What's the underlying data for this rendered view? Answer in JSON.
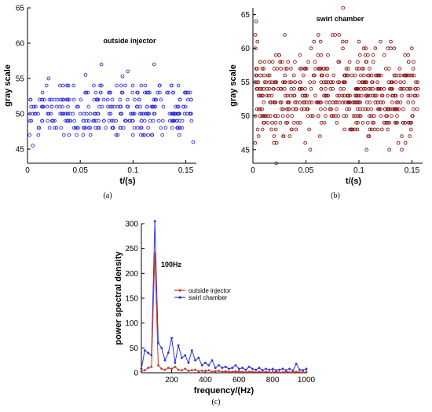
{
  "panels": {
    "a": "(a)",
    "b": "(b)",
    "c": "(c)"
  },
  "colors": {
    "outside": "#2b2bd6",
    "swirl": "#8b1a1a",
    "psd_outside": "#c0392b",
    "psd_swirl": "#3030e0"
  },
  "chart_data": [
    {
      "id": "a",
      "type": "scatter",
      "title": "",
      "annotation": "outside injector",
      "xlabel": "t/(s)",
      "ylabel": "gray scale",
      "xlim": [
        0,
        0.16
      ],
      "ylim": [
        43,
        65
      ],
      "xticks": [
        0,
        0.05,
        0.1,
        0.15
      ],
      "xtick_labels": [
        "0",
        "0.05",
        "0.1",
        "0.15"
      ],
      "yticks": [
        45,
        50,
        55,
        60,
        65
      ],
      "ytick_labels": [
        "45",
        "50",
        "55",
        "60",
        "65"
      ],
      "levels": [
        47,
        48,
        49,
        50,
        51,
        52,
        53,
        54
      ],
      "level_counts": [
        18,
        40,
        55,
        60,
        45,
        40,
        30,
        20
      ],
      "outliers": [
        [
          0.005,
          45.5
        ],
        [
          0.02,
          55
        ],
        [
          0.055,
          55.5
        ],
        [
          0.07,
          57
        ],
        [
          0.095,
          56
        ],
        [
          0.12,
          57
        ],
        [
          0.09,
          55.3
        ],
        [
          0.157,
          46
        ]
      ]
    },
    {
      "id": "b",
      "type": "scatter",
      "title": "",
      "annotation": "swirl chamber",
      "xlabel": "t/(s)",
      "ylabel": "gray scale",
      "xlim": [
        0,
        0.16
      ],
      "ylim": [
        43,
        66
      ],
      "xticks": [
        0,
        0.05,
        0.1,
        0.15
      ],
      "xtick_labels": [
        "0",
        "0.05",
        "0.1",
        "0.15"
      ],
      "yticks": [
        45,
        50,
        55,
        60,
        65
      ],
      "ytick_labels": [
        "45",
        "50",
        "55",
        "60",
        "65"
      ],
      "levels": [
        45,
        46,
        47,
        48,
        49,
        50,
        51,
        52,
        53,
        54,
        55,
        56,
        57,
        58,
        59,
        60,
        61,
        62
      ],
      "level_counts": [
        4,
        6,
        10,
        22,
        35,
        45,
        55,
        60,
        62,
        60,
        55,
        45,
        35,
        22,
        14,
        10,
        6,
        4
      ],
      "outliers": [
        [
          0.003,
          64
        ],
        [
          0.085,
          66
        ],
        [
          0.075,
          62
        ],
        [
          0.1,
          61
        ],
        [
          0.13,
          61
        ],
        [
          0.03,
          62
        ],
        [
          0.022,
          43
        ]
      ]
    },
    {
      "id": "c",
      "type": "line",
      "title": "",
      "annotation": "100Hz",
      "xlabel": "frequency/(Hz)",
      "ylabel": "power spectral density",
      "xlim": [
        20,
        1000
      ],
      "ylim": [
        0,
        300
      ],
      "xticks": [
        200,
        400,
        600,
        800,
        1000
      ],
      "xtick_labels": [
        "200",
        "400",
        "600",
        "800",
        "1000"
      ],
      "yticks": [
        0,
        50,
        100,
        150,
        200,
        250,
        300
      ],
      "ytick_labels": [
        "0",
        "50",
        "100",
        "150",
        "200",
        "250",
        "300"
      ],
      "legend_position": "center-right",
      "series": [
        {
          "name": "outside injector",
          "x": [
            20,
            40,
            60,
            80,
            100,
            120,
            140,
            160,
            180,
            200,
            220,
            240,
            260,
            280,
            300,
            320,
            340,
            360,
            380,
            400,
            420,
            440,
            460,
            480,
            500,
            520,
            540,
            560,
            580,
            600,
            620,
            640,
            660,
            680,
            700,
            720,
            740,
            760,
            780,
            800,
            820,
            840,
            860,
            880,
            900,
            920,
            940,
            960,
            980,
            1000
          ],
          "y": [
            3,
            5,
            10,
            12,
            240,
            15,
            8,
            6,
            10,
            8,
            12,
            6,
            5,
            8,
            4,
            5,
            6,
            3,
            4,
            3,
            5,
            2,
            3,
            4,
            2,
            3,
            2,
            2,
            3,
            2,
            2,
            1,
            2,
            2,
            1,
            2,
            1,
            2,
            1,
            1,
            2,
            1,
            1,
            2,
            1,
            1,
            2,
            1,
            1,
            1
          ]
        },
        {
          "name": "swirl chamber",
          "x": [
            20,
            40,
            60,
            80,
            100,
            120,
            140,
            160,
            180,
            200,
            220,
            240,
            260,
            280,
            300,
            320,
            340,
            360,
            380,
            400,
            420,
            440,
            460,
            480,
            500,
            520,
            540,
            560,
            580,
            600,
            620,
            640,
            660,
            680,
            700,
            720,
            740,
            760,
            780,
            800,
            820,
            840,
            860,
            880,
            900,
            920,
            940,
            960,
            980,
            1000
          ],
          "y": [
            8,
            45,
            40,
            35,
            305,
            60,
            50,
            25,
            40,
            70,
            20,
            55,
            30,
            35,
            20,
            45,
            25,
            30,
            15,
            20,
            15,
            25,
            10,
            15,
            10,
            12,
            8,
            10,
            15,
            8,
            10,
            6,
            12,
            8,
            6,
            10,
            5,
            8,
            6,
            8,
            5,
            6,
            8,
            5,
            8,
            4,
            18,
            6,
            5,
            8
          ]
        }
      ]
    }
  ]
}
